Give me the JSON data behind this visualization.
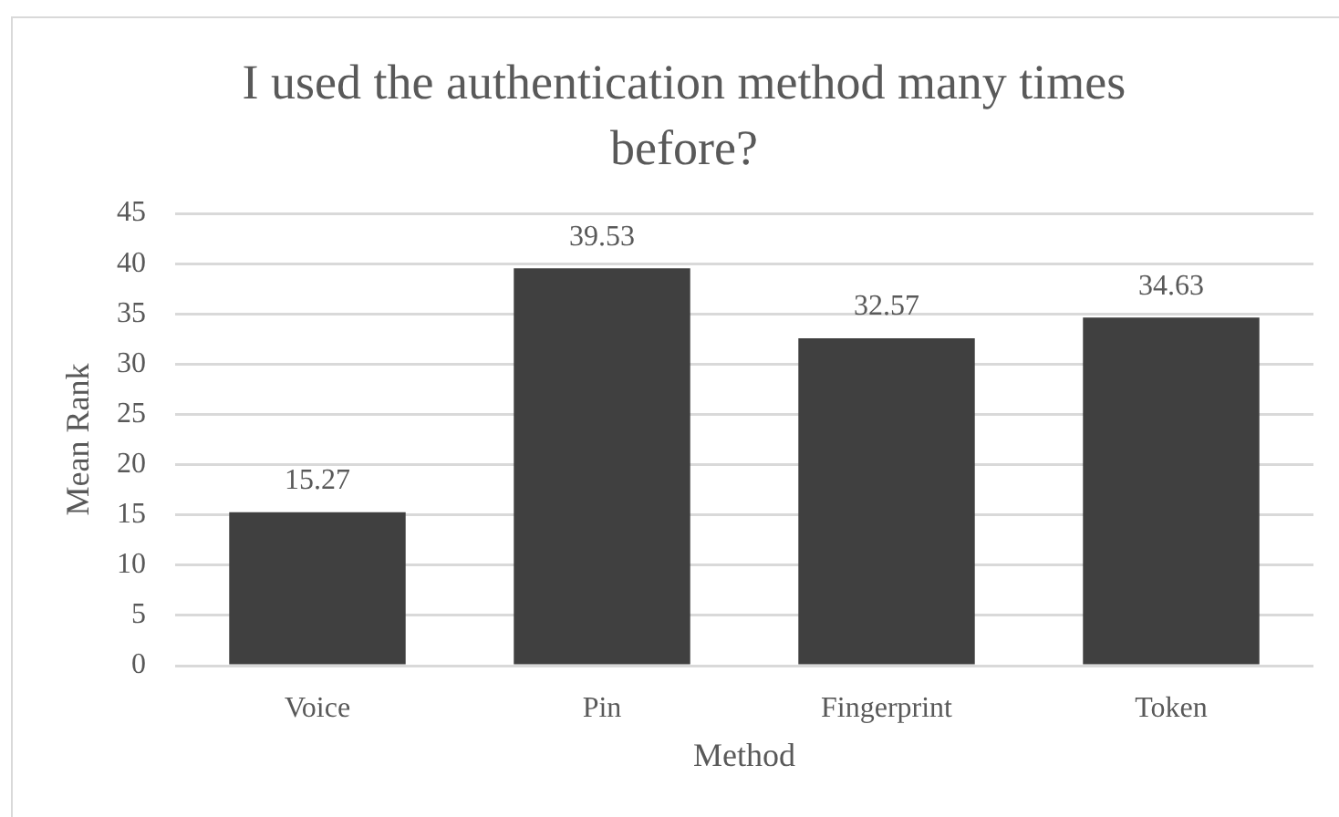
{
  "chart_data": {
    "type": "bar",
    "title": "I used the authentication method many times before?",
    "xlabel": "Method",
    "ylabel": "Mean Rank",
    "categories": [
      "Voice",
      "Pin",
      "Fingerprint",
      "Token"
    ],
    "values": [
      15.27,
      39.53,
      32.57,
      34.63
    ],
    "color": "#404040",
    "ylim": [
      0,
      45
    ],
    "yticks": [
      0,
      5,
      10,
      15,
      20,
      25,
      30,
      35,
      40,
      45
    ],
    "grid": "y",
    "data_labels": true
  }
}
